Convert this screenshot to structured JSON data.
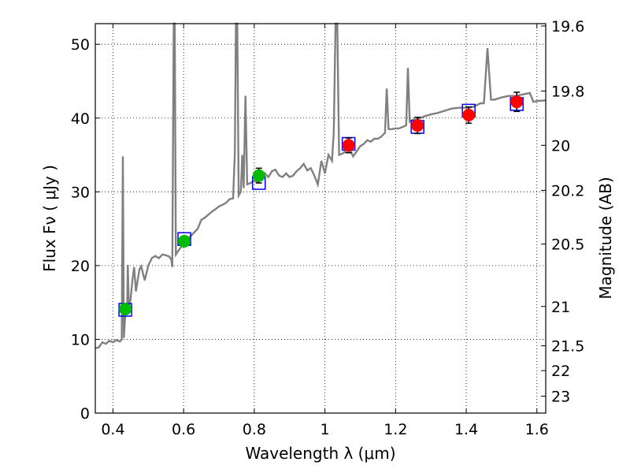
{
  "chart_data": {
    "type": "scatter",
    "xlabel": "Wavelength  λ (μm)",
    "ylabel": "Flux  Fν  ( μJy )",
    "ylabel_right": "Magnitude (AB)",
    "xlim": [
      0.35,
      1.625
    ],
    "ylim": [
      0,
      52.8
    ],
    "grid": true,
    "x_ticks": [
      {
        "value": 0.4,
        "label": "0.4"
      },
      {
        "value": 0.6,
        "label": "0.6"
      },
      {
        "value": 0.8,
        "label": "0.8"
      },
      {
        "value": 1.0,
        "label": "1"
      },
      {
        "value": 1.2,
        "label": "1.2"
      },
      {
        "value": 1.4,
        "label": "1.4"
      },
      {
        "value": 1.6,
        "label": "1.6"
      }
    ],
    "y_ticks": [
      {
        "value": 0,
        "label": "0"
      },
      {
        "value": 10,
        "label": "10"
      },
      {
        "value": 20,
        "label": "20"
      },
      {
        "value": 30,
        "label": "30"
      },
      {
        "value": 40,
        "label": "40"
      },
      {
        "value": 50,
        "label": "50"
      }
    ],
    "mag_ticks": [
      {
        "value": 19.6,
        "label": "19.6"
      },
      {
        "value": 19.8,
        "label": "19.8"
      },
      {
        "value": 20,
        "label": "20"
      },
      {
        "value": 20.2,
        "label": "20.2"
      },
      {
        "value": 20.5,
        "label": "20.5"
      },
      {
        "value": 21,
        "label": "21"
      },
      {
        "value": 21.5,
        "label": "21.5"
      },
      {
        "value": 22,
        "label": "22"
      },
      {
        "value": 23,
        "label": "23"
      }
    ],
    "colors": {
      "spectrum": "#808080",
      "model_box": "#0000ff",
      "optical": "#00bb00",
      "nir": "#ff0000",
      "errorbar": "#000000"
    },
    "model_spectrum": [
      [
        0.35,
        8.8
      ],
      [
        0.36,
        8.9
      ],
      [
        0.37,
        9.6
      ],
      [
        0.38,
        9.4
      ],
      [
        0.39,
        9.8
      ],
      [
        0.4,
        9.6
      ],
      [
        0.41,
        9.9
      ],
      [
        0.42,
        9.7
      ],
      [
        0.425,
        10.0
      ],
      [
        0.428,
        34.8
      ],
      [
        0.431,
        10.2
      ],
      [
        0.435,
        13.5
      ],
      [
        0.44,
        14.0
      ],
      [
        0.442,
        20.1
      ],
      [
        0.445,
        14.2
      ],
      [
        0.45,
        15.5
      ],
      [
        0.455,
        18.0
      ],
      [
        0.46,
        19.8
      ],
      [
        0.465,
        16.5
      ],
      [
        0.47,
        18.0
      ],
      [
        0.475,
        19.5
      ],
      [
        0.48,
        19.9
      ],
      [
        0.49,
        18.0
      ],
      [
        0.5,
        20.0
      ],
      [
        0.51,
        21.0
      ],
      [
        0.52,
        21.3
      ],
      [
        0.53,
        21.0
      ],
      [
        0.54,
        21.5
      ],
      [
        0.55,
        21.4
      ],
      [
        0.56,
        21.2
      ],
      [
        0.565,
        20.8
      ],
      [
        0.568,
        19.8
      ],
      [
        0.572,
        52.8
      ],
      [
        0.575,
        52.8
      ],
      [
        0.578,
        21.5
      ],
      [
        0.585,
        22.0
      ],
      [
        0.6,
        23.0
      ],
      [
        0.62,
        24.0
      ],
      [
        0.64,
        25.0
      ],
      [
        0.65,
        26.2
      ],
      [
        0.66,
        26.5
      ],
      [
        0.68,
        27.3
      ],
      [
        0.7,
        28.0
      ],
      [
        0.72,
        28.5
      ],
      [
        0.73,
        29.0
      ],
      [
        0.74,
        29.1
      ],
      [
        0.745,
        35.2
      ],
      [
        0.748,
        52.8
      ],
      [
        0.752,
        52.8
      ],
      [
        0.756,
        29.5
      ],
      [
        0.762,
        30.0
      ],
      [
        0.766,
        35.0
      ],
      [
        0.77,
        30.5
      ],
      [
        0.775,
        43.0
      ],
      [
        0.78,
        31.0
      ],
      [
        0.79,
        31.2
      ],
      [
        0.8,
        31.5
      ],
      [
        0.81,
        31.3
      ],
      [
        0.82,
        32.0
      ],
      [
        0.83,
        32.5
      ],
      [
        0.84,
        32.0
      ],
      [
        0.85,
        32.8
      ],
      [
        0.86,
        33.0
      ],
      [
        0.87,
        32.2
      ],
      [
        0.88,
        32.0
      ],
      [
        0.89,
        32.5
      ],
      [
        0.9,
        32.0
      ],
      [
        0.91,
        32.2
      ],
      [
        0.92,
        32.8
      ],
      [
        0.93,
        33.2
      ],
      [
        0.94,
        33.8
      ],
      [
        0.95,
        32.9
      ],
      [
        0.96,
        33.2
      ],
      [
        0.97,
        32.2
      ],
      [
        0.98,
        31.0
      ],
      [
        0.99,
        34.2
      ],
      [
        1.0,
        32.5
      ],
      [
        1.01,
        35.0
      ],
      [
        1.02,
        34.2
      ],
      [
        1.025,
        38.0
      ],
      [
        1.03,
        52.8
      ],
      [
        1.035,
        52.8
      ],
      [
        1.04,
        35.0
      ],
      [
        1.05,
        35.2
      ],
      [
        1.06,
        35.5
      ],
      [
        1.07,
        35.8
      ],
      [
        1.08,
        34.8
      ],
      [
        1.09,
        35.5
      ],
      [
        1.1,
        36.2
      ],
      [
        1.11,
        36.5
      ],
      [
        1.12,
        37.0
      ],
      [
        1.13,
        36.8
      ],
      [
        1.14,
        37.2
      ],
      [
        1.15,
        37.2
      ],
      [
        1.16,
        37.5
      ],
      [
        1.17,
        38.0
      ],
      [
        1.175,
        44.0
      ],
      [
        1.18,
        38.5
      ],
      [
        1.19,
        38.5
      ],
      [
        1.2,
        38.6
      ],
      [
        1.21,
        38.6
      ],
      [
        1.22,
        38.8
      ],
      [
        1.23,
        39.0
      ],
      [
        1.235,
        46.8
      ],
      [
        1.24,
        39.5
      ],
      [
        1.25,
        39.8
      ],
      [
        1.26,
        39.8
      ],
      [
        1.28,
        40.2
      ],
      [
        1.3,
        40.5
      ],
      [
        1.32,
        40.7
      ],
      [
        1.34,
        41.0
      ],
      [
        1.36,
        41.3
      ],
      [
        1.38,
        41.4
      ],
      [
        1.4,
        41.4
      ],
      [
        1.42,
        41.5
      ],
      [
        1.44,
        42.0
      ],
      [
        1.45,
        42.0
      ],
      [
        1.46,
        49.5
      ],
      [
        1.47,
        42.5
      ],
      [
        1.48,
        42.5
      ],
      [
        1.5,
        42.8
      ],
      [
        1.52,
        43.0
      ],
      [
        1.54,
        43.0
      ],
      [
        1.56,
        43.2
      ],
      [
        1.58,
        43.4
      ],
      [
        1.59,
        42.2
      ],
      [
        1.6,
        42.3
      ],
      [
        1.625,
        42.4
      ]
    ],
    "series": [
      {
        "points": [
          {
            "x": 0.435,
            "y": 14.1,
            "err": 0.6,
            "model": 14.0
          },
          {
            "x": 0.602,
            "y": 23.3,
            "err": 0.5,
            "model": 23.6
          },
          {
            "x": 0.813,
            "y": 32.2,
            "err": 1.0,
            "model": 31.2
          }
        ]
      },
      {
        "points": [
          {
            "x": 1.067,
            "y": 36.3,
            "err": 1.0,
            "model": 36.5
          },
          {
            "x": 1.262,
            "y": 39.0,
            "err": 1.1,
            "model": 38.8
          },
          {
            "x": 1.407,
            "y": 40.4,
            "err": 1.1,
            "model": 41.0
          },
          {
            "x": 1.543,
            "y": 42.2,
            "err": 1.3,
            "model": 41.9
          }
        ]
      }
    ]
  }
}
